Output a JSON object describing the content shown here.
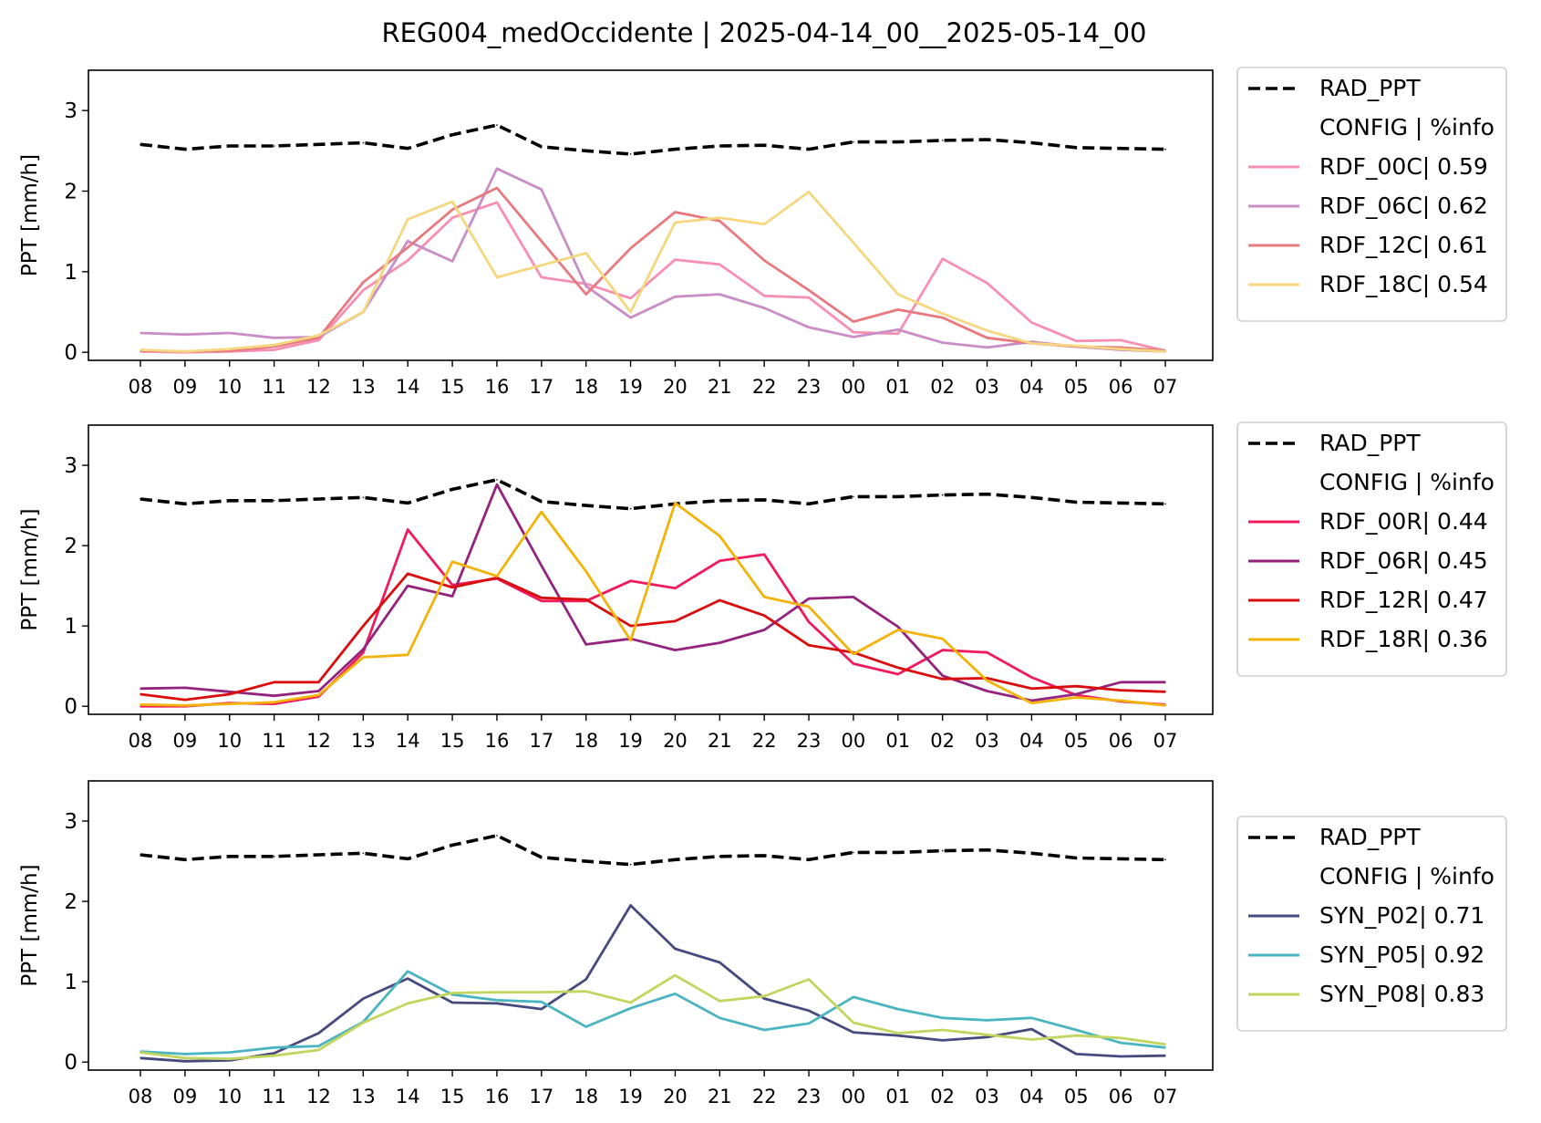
{
  "title": "REG004_medOccidente | 2025-04-14_00__2025-05-14_00",
  "legend_header": "CONFIG  | %info",
  "chart_data": [
    {
      "type": "line",
      "ylabel": "PPT [mm/h]",
      "ylim": [
        -0.1,
        3.5
      ],
      "yticks": [
        0,
        1,
        2,
        3
      ],
      "categories": [
        "08",
        "09",
        "10",
        "11",
        "12",
        "13",
        "14",
        "15",
        "16",
        "17",
        "18",
        "19",
        "20",
        "21",
        "22",
        "23",
        "00",
        "01",
        "02",
        "03",
        "04",
        "05",
        "06",
        "07"
      ],
      "legend_position": "outside-right",
      "series": [
        {
          "name": "RAD_PPT",
          "color": "#000000",
          "dashed": true,
          "values": [
            2.58,
            2.52,
            2.56,
            2.56,
            2.58,
            2.6,
            2.53,
            2.7,
            2.82,
            2.55,
            2.5,
            2.46,
            2.52,
            2.56,
            2.57,
            2.52,
            2.61,
            2.61,
            2.63,
            2.64,
            2.6,
            2.54,
            2.53,
            2.52
          ]
        },
        {
          "name": "RDF_00C| 0.59",
          "color": "#f78fb3",
          "values": [
            0.01,
            0.0,
            0.01,
            0.03,
            0.15,
            0.77,
            1.14,
            1.67,
            1.86,
            0.93,
            0.85,
            0.67,
            1.15,
            1.09,
            0.7,
            0.68,
            0.25,
            0.23,
            1.16,
            0.86,
            0.37,
            0.14,
            0.15,
            0.02
          ]
        },
        {
          "name": "RDF_06C| 0.62",
          "color": "#c98ec5",
          "values": [
            0.24,
            0.22,
            0.24,
            0.18,
            0.19,
            0.5,
            1.38,
            1.13,
            2.28,
            2.02,
            0.82,
            0.43,
            0.69,
            0.72,
            0.55,
            0.31,
            0.19,
            0.28,
            0.12,
            0.06,
            0.13,
            0.07,
            0.03,
            0.01
          ]
        },
        {
          "name": "RDF_12C| 0.61",
          "color": "#e8797f",
          "values": [
            0.02,
            0.01,
            0.02,
            0.07,
            0.18,
            0.87,
            1.3,
            1.77,
            2.04,
            1.38,
            0.72,
            1.29,
            1.74,
            1.63,
            1.14,
            0.77,
            0.38,
            0.53,
            0.43,
            0.18,
            0.11,
            0.07,
            0.06,
            0.02
          ]
        },
        {
          "name": "RDF_18C| 0.54",
          "color": "#f5d77f",
          "values": [
            0.03,
            0.01,
            0.04,
            0.09,
            0.21,
            0.5,
            1.65,
            1.87,
            0.93,
            1.08,
            1.23,
            0.5,
            1.61,
            1.67,
            1.59,
            1.99,
            1.36,
            0.72,
            0.48,
            0.27,
            0.11,
            0.08,
            0.04,
            0.01
          ]
        }
      ]
    },
    {
      "type": "line",
      "ylabel": "PPT [mm/h]",
      "ylim": [
        -0.1,
        3.5
      ],
      "yticks": [
        0,
        1,
        2,
        3
      ],
      "categories": [
        "08",
        "09",
        "10",
        "11",
        "12",
        "13",
        "14",
        "15",
        "16",
        "17",
        "18",
        "19",
        "20",
        "21",
        "22",
        "23",
        "00",
        "01",
        "02",
        "03",
        "04",
        "05",
        "06",
        "07"
      ],
      "legend_position": "outside-right",
      "series": [
        {
          "name": "RAD_PPT",
          "color": "#000000",
          "dashed": true,
          "values": [
            2.58,
            2.52,
            2.56,
            2.56,
            2.58,
            2.6,
            2.53,
            2.7,
            2.82,
            2.55,
            2.5,
            2.46,
            2.52,
            2.56,
            2.57,
            2.52,
            2.61,
            2.61,
            2.63,
            2.64,
            2.6,
            2.54,
            2.53,
            2.52
          ]
        },
        {
          "name": "RDF_00R| 0.44",
          "color": "#f01b5d",
          "values": [
            0.0,
            0.0,
            0.04,
            0.03,
            0.12,
            0.67,
            2.2,
            1.51,
            1.59,
            1.31,
            1.31,
            1.56,
            1.47,
            1.81,
            1.89,
            1.05,
            0.53,
            0.4,
            0.7,
            0.67,
            0.36,
            0.14,
            0.06,
            0.02
          ]
        },
        {
          "name": "RDF_06R| 0.45",
          "color": "#94237e",
          "values": [
            0.22,
            0.23,
            0.18,
            0.13,
            0.19,
            0.71,
            1.5,
            1.37,
            2.76,
            1.75,
            0.77,
            0.84,
            0.7,
            0.79,
            0.95,
            1.34,
            1.36,
            0.99,
            0.38,
            0.19,
            0.07,
            0.15,
            0.3,
            0.3
          ]
        },
        {
          "name": "RDF_12R| 0.47",
          "color": "#d90d0d",
          "values": [
            0.15,
            0.08,
            0.15,
            0.3,
            0.3,
            1.0,
            1.65,
            1.48,
            1.6,
            1.35,
            1.33,
            1.0,
            1.06,
            1.32,
            1.13,
            0.76,
            0.67,
            0.48,
            0.34,
            0.35,
            0.22,
            0.25,
            0.2,
            0.18
          ]
        },
        {
          "name": "RDF_18R| 0.36",
          "color": "#f2b30a",
          "values": [
            0.02,
            0.01,
            0.03,
            0.05,
            0.14,
            0.61,
            0.64,
            1.8,
            1.62,
            2.42,
            1.68,
            0.82,
            2.53,
            2.12,
            1.36,
            1.24,
            0.65,
            0.95,
            0.84,
            0.32,
            0.04,
            0.11,
            0.07,
            0.01
          ]
        }
      ]
    },
    {
      "type": "line",
      "ylabel": "PPT [mm/h]",
      "ylim": [
        -0.1,
        3.5
      ],
      "yticks": [
        0,
        1,
        2,
        3
      ],
      "categories": [
        "08",
        "09",
        "10",
        "11",
        "12",
        "13",
        "14",
        "15",
        "16",
        "17",
        "18",
        "19",
        "20",
        "21",
        "22",
        "23",
        "00",
        "01",
        "02",
        "03",
        "04",
        "05",
        "06",
        "07"
      ],
      "legend_position": "outside-right",
      "series": [
        {
          "name": "RAD_PPT",
          "color": "#000000",
          "dashed": true,
          "values": [
            2.58,
            2.52,
            2.56,
            2.56,
            2.58,
            2.6,
            2.53,
            2.7,
            2.82,
            2.55,
            2.5,
            2.46,
            2.52,
            2.56,
            2.57,
            2.52,
            2.61,
            2.61,
            2.63,
            2.64,
            2.6,
            2.54,
            2.53,
            2.52
          ]
        },
        {
          "name": "SYN_P02| 0.71",
          "color": "#474a7d",
          "values": [
            0.05,
            0.01,
            0.02,
            0.11,
            0.36,
            0.79,
            1.04,
            0.74,
            0.73,
            0.66,
            1.03,
            1.95,
            1.41,
            1.24,
            0.79,
            0.64,
            0.37,
            0.33,
            0.27,
            0.31,
            0.41,
            0.1,
            0.07,
            0.08
          ]
        },
        {
          "name": "SYN_P05| 0.92",
          "color": "#4ab5c0",
          "values": [
            0.13,
            0.1,
            0.12,
            0.18,
            0.2,
            0.5,
            1.13,
            0.84,
            0.77,
            0.75,
            0.44,
            0.67,
            0.85,
            0.55,
            0.4,
            0.48,
            0.81,
            0.66,
            0.55,
            0.52,
            0.55,
            0.4,
            0.24,
            0.18
          ]
        },
        {
          "name": "SYN_P08| 0.83",
          "color": "#c2d55f",
          "values": [
            0.12,
            0.05,
            0.04,
            0.08,
            0.15,
            0.49,
            0.73,
            0.86,
            0.87,
            0.87,
            0.88,
            0.74,
            1.08,
            0.76,
            0.82,
            1.03,
            0.49,
            0.36,
            0.4,
            0.34,
            0.28,
            0.33,
            0.3,
            0.22
          ]
        }
      ]
    }
  ]
}
